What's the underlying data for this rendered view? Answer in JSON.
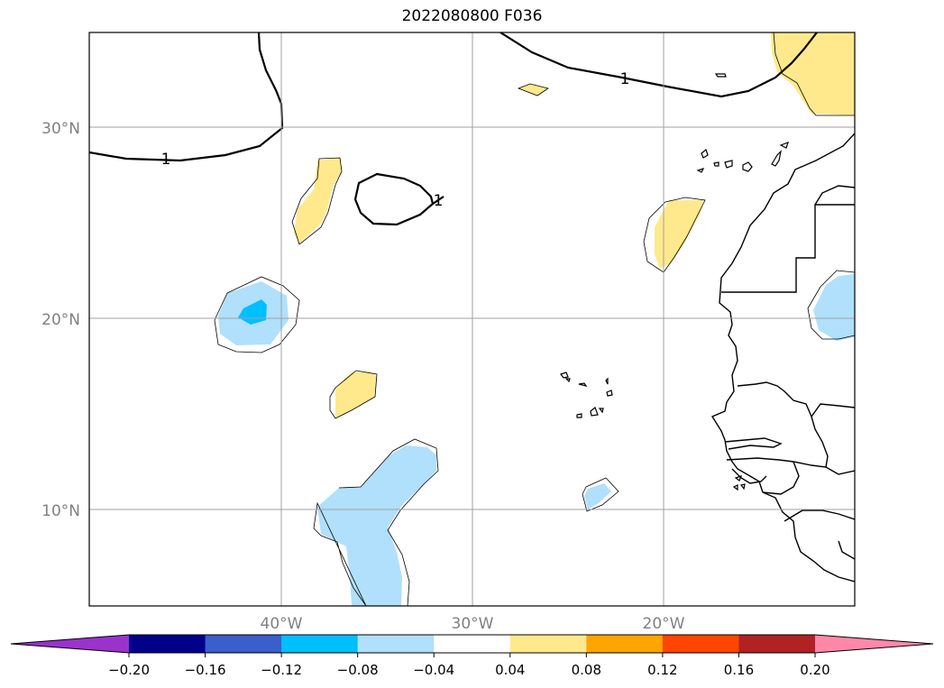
{
  "title": "2022080800 F036",
  "map": {
    "lat_labels": [
      "30°N",
      "20°N",
      "10°N"
    ],
    "lon_labels": [
      "40°W",
      "30°W",
      "20°W"
    ],
    "contour_label": "1",
    "fill_colors": {
      "neg_light": "#b0e0fb",
      "neg_mid": "#00bfff",
      "pos_light": "#ffe98c"
    }
  },
  "colorbar": {
    "colors": [
      "#9933cc",
      "#00008b",
      "#3a5fcd",
      "#00bfff",
      "#b0e0fb",
      "#ffffff",
      "#ffe98c",
      "#ffa500",
      "#ff4500",
      "#b22222",
      "#ff88aa"
    ],
    "ticks": [
      "−0.20",
      "−0.16",
      "−0.12",
      "−0.08",
      "−0.04",
      "0.04",
      "0.08",
      "0.12",
      "0.16",
      "0.20"
    ]
  }
}
